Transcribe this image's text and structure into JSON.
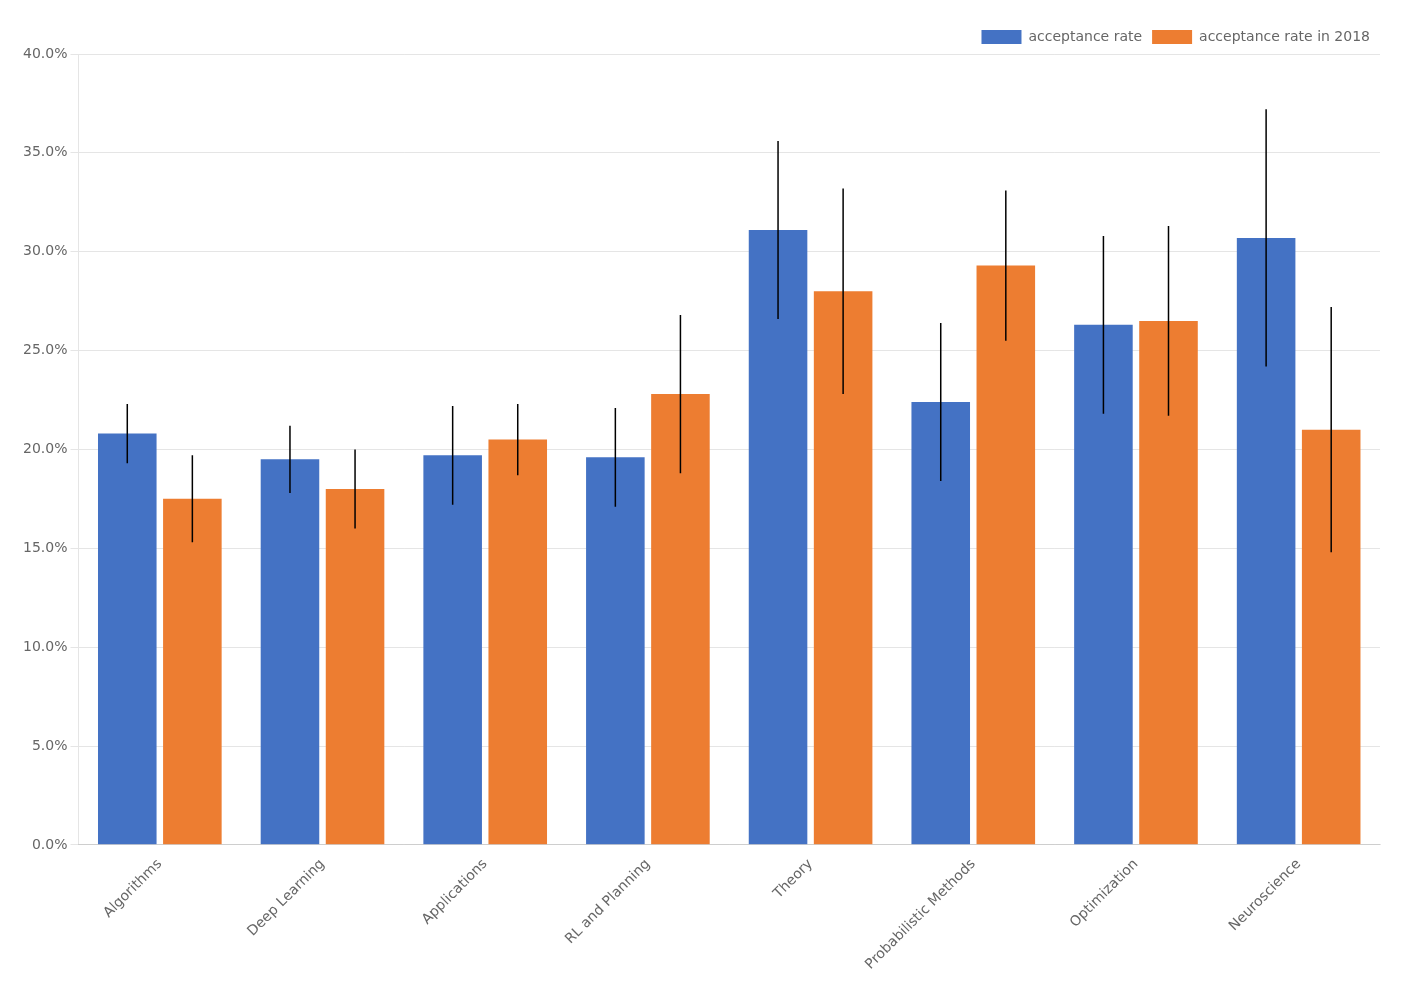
{
  "chart_data": {
    "type": "bar",
    "categories": [
      "Algorithms",
      "Deep Learning",
      "Applications",
      "RL and Planning",
      "Theory",
      "Probabilistic Methods",
      "Optimization",
      "Neuroscience"
    ],
    "series": [
      {
        "name": "acceptance rate",
        "color": "#4472C4",
        "values": [
          0.208,
          0.195,
          0.197,
          0.196,
          0.311,
          0.224,
          0.263,
          0.307
        ],
        "errors": [
          0.015,
          0.017,
          0.025,
          0.025,
          0.045,
          0.04,
          0.045,
          0.065
        ]
      },
      {
        "name": "acceptance rate in 2018",
        "color": "#ED7D31",
        "values": [
          0.175,
          0.18,
          0.205,
          0.228,
          0.28,
          0.293,
          0.265,
          0.21
        ],
        "errors": [
          0.022,
          0.02,
          0.018,
          0.04,
          0.052,
          0.038,
          0.048,
          0.062
        ]
      }
    ],
    "ylim": [
      0.0,
      0.4
    ],
    "yticks": [
      {
        "value": 0.0,
        "label": "0.0%"
      },
      {
        "value": 0.05,
        "label": "5.0%"
      },
      {
        "value": 0.1,
        "label": "10.0%"
      },
      {
        "value": 0.15,
        "label": "15.0%"
      },
      {
        "value": 0.2,
        "label": "20.0%"
      },
      {
        "value": 0.25,
        "label": "25.0%"
      },
      {
        "value": 0.3,
        "label": "30.0%"
      },
      {
        "value": 0.35,
        "label": "35.0%"
      },
      {
        "value": 0.4,
        "label": "40.0%"
      }
    ],
    "grid": true,
    "legend": "upper right"
  }
}
